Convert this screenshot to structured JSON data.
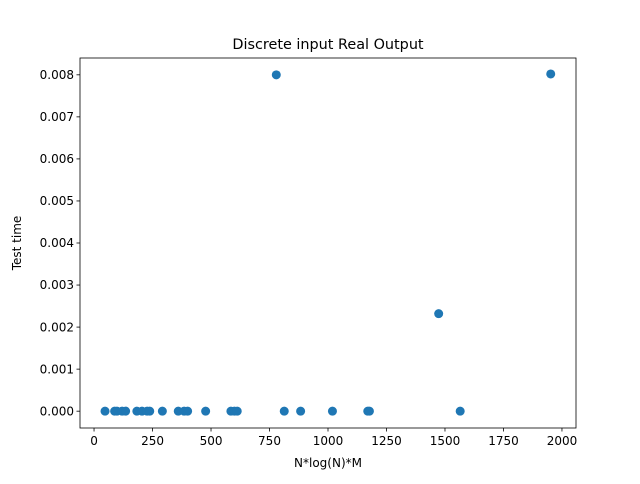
{
  "chart_data": {
    "type": "scatter",
    "title": "Discrete input Real Output",
    "xlabel": "N*log(N)*M",
    "ylabel": "Test time",
    "xlim": [
      -60,
      2060
    ],
    "ylim": [
      -0.0004,
      0.0084
    ],
    "x_ticks": [
      0,
      250,
      500,
      750,
      1000,
      1250,
      1500,
      1750,
      2000
    ],
    "x_tick_labels": [
      "0",
      "250",
      "500",
      "750",
      "1000",
      "1250",
      "1500",
      "1750",
      "2000"
    ],
    "y_ticks": [
      0,
      0.001,
      0.002,
      0.003,
      0.004,
      0.005,
      0.006,
      0.007,
      0.008
    ],
    "y_tick_labels": [
      "0.000",
      "0.001",
      "0.002",
      "0.003",
      "0.004",
      "0.005",
      "0.006",
      "0.007",
      "0.008"
    ],
    "grid": false,
    "marker_color": "#1f77b4",
    "points": [
      {
        "x": 47,
        "y": 0
      },
      {
        "x": 88,
        "y": 0
      },
      {
        "x": 98,
        "y": 0
      },
      {
        "x": 120,
        "y": 0
      },
      {
        "x": 135,
        "y": 0
      },
      {
        "x": 183,
        "y": 0
      },
      {
        "x": 205,
        "y": 0
      },
      {
        "x": 227,
        "y": 0
      },
      {
        "x": 238,
        "y": 0
      },
      {
        "x": 292,
        "y": 0
      },
      {
        "x": 360,
        "y": 0
      },
      {
        "x": 385,
        "y": 0
      },
      {
        "x": 400,
        "y": 0
      },
      {
        "x": 477,
        "y": 0
      },
      {
        "x": 585,
        "y": 0
      },
      {
        "x": 600,
        "y": 0
      },
      {
        "x": 612,
        "y": 0
      },
      {
        "x": 779,
        "y": 0.008
      },
      {
        "x": 813,
        "y": 0
      },
      {
        "x": 883,
        "y": 0
      },
      {
        "x": 1019,
        "y": 0
      },
      {
        "x": 1170,
        "y": 0
      },
      {
        "x": 1177,
        "y": 0
      },
      {
        "x": 1473,
        "y": 0.00232
      },
      {
        "x": 1565,
        "y": 0
      },
      {
        "x": 1952,
        "y": 0.00802
      }
    ]
  }
}
